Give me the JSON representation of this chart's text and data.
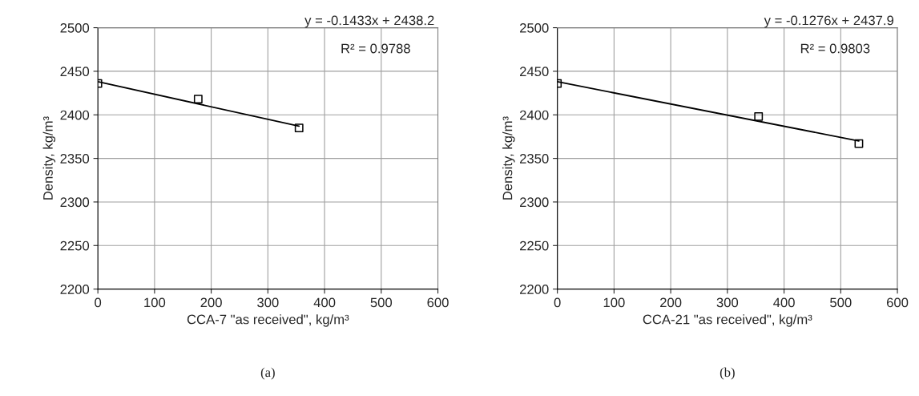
{
  "chart_data": [
    {
      "type": "scatter",
      "xlabel": "CCA-7 \"as received\", kg/m³",
      "ylabel": "Density, kg/m³",
      "xlim": [
        0,
        600
      ],
      "xticks": [
        0,
        100,
        200,
        300,
        400,
        500,
        600
      ],
      "ylim": [
        2200,
        2500
      ],
      "yticks": [
        2200,
        2250,
        2300,
        2350,
        2400,
        2450,
        2500
      ],
      "grid": true,
      "legend": false,
      "series": [
        {
          "color": "#000000",
          "marker": "square",
          "x": [
            0,
            177,
            355
          ],
          "values": [
            2436,
            2418,
            2385
          ]
        },
        {
          "type": "line",
          "color": "#000000",
          "marker": "none",
          "line_style": "solid",
          "x": [
            0,
            355
          ],
          "values": [
            2438,
            2387
          ]
        }
      ],
      "annotations": [
        "y = -0.1433x + 2438.2",
        "R² = 0.9788",
        "(a)"
      ]
    },
    {
      "type": "scatter",
      "xlabel": "CCA-21 \"as received\", kg/m³",
      "ylabel": "Density, kg/m³",
      "xlim": [
        0,
        600
      ],
      "xticks": [
        0,
        100,
        200,
        300,
        400,
        500,
        600
      ],
      "ylim": [
        2200,
        2500
      ],
      "yticks": [
        2200,
        2250,
        2300,
        2350,
        2400,
        2450,
        2500
      ],
      "grid": true,
      "legend": false,
      "series": [
        {
          "color": "#000000",
          "marker": "square",
          "x": [
            0,
            355,
            532
          ],
          "values": [
            2436,
            2398,
            2367
          ]
        },
        {
          "type": "line",
          "color": "#000000",
          "marker": "none",
          "line_style": "solid",
          "x": [
            0,
            532
          ],
          "values": [
            2438,
            2370
          ]
        }
      ],
      "annotations": [
        "y = -0.1276x + 2437.9",
        "R² = 0.9803",
        "(b)"
      ]
    }
  ]
}
